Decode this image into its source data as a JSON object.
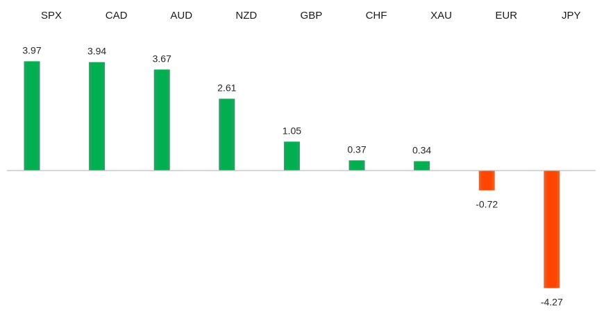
{
  "chart_data": {
    "type": "bar",
    "categories": [
      "SPX",
      "CAD",
      "AUD",
      "NZD",
      "GBP",
      "CHF",
      "XAU",
      "EUR",
      "JPY"
    ],
    "values": [
      3.97,
      3.94,
      3.67,
      2.61,
      1.05,
      0.37,
      0.34,
      -0.72,
      -4.27
    ],
    "value_labels": [
      "3.97",
      "3.94",
      "3.67",
      "2.61",
      "1.05",
      "0.37",
      "0.34",
      "-0.72",
      "-4.27"
    ],
    "title": "",
    "xlabel": "",
    "ylabel": "",
    "ylim": [
      -4.3,
      4.3
    ],
    "grid": false,
    "legend": "none",
    "category_axis_position": "top",
    "colors": {
      "positive": "#00b050",
      "positive_edge": "#2e9e66",
      "negative": "#ff4500",
      "negative_edge": "#e8672f",
      "axis": "#bfbfbf",
      "category_text": "#1a1a1a",
      "value_text": "#262626"
    }
  }
}
